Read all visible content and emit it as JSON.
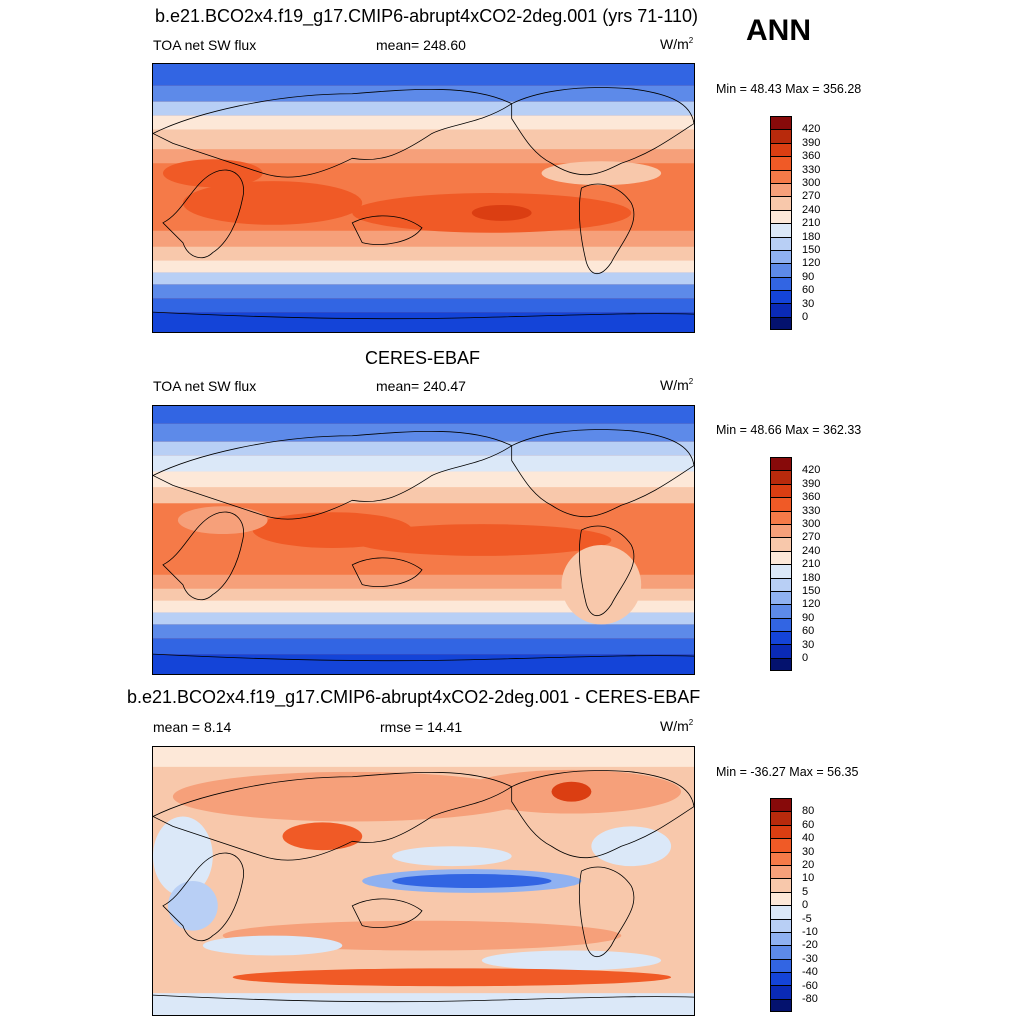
{
  "season": "ANN",
  "units_base": "W/m",
  "units_exp": "2",
  "panels": [
    {
      "title": "b.e21.BCO2x4.f19_g17.CMIP6-abrupt4xCO2-2deg.001 (yrs 71-110)",
      "left_label": "TOA net SW flux",
      "center_label": "mean= 248.60",
      "minmax": "Min =  48.43 Max = 356.28",
      "colorbar_labels": [
        "420",
        "390",
        "360",
        "330",
        "300",
        "270",
        "240",
        "210",
        "180",
        "150",
        "120",
        "90",
        "60",
        "30",
        "0"
      ],
      "colorbar_colors": [
        "#870a0a",
        "#b82a0c",
        "#db3e12",
        "#f05a26",
        "#f57a48",
        "#f6a07a",
        "#f8c8ab",
        "#fde8d8",
        "#dbe8f8",
        "#b8cff5",
        "#8fb1f1",
        "#5d8ae9",
        "#3265e3",
        "#1444d8",
        "#0a2ab6",
        "#04126e"
      ]
    },
    {
      "title": "CERES-EBAF",
      "left_label": "TOA net SW flux",
      "center_label": "mean= 240.47",
      "minmax": "Min =  48.66 Max = 362.33",
      "colorbar_labels": [
        "420",
        "390",
        "360",
        "330",
        "300",
        "270",
        "240",
        "210",
        "180",
        "150",
        "120",
        "90",
        "60",
        "30",
        "0"
      ],
      "colorbar_colors": [
        "#870a0a",
        "#b82a0c",
        "#db3e12",
        "#f05a26",
        "#f57a48",
        "#f6a07a",
        "#f8c8ab",
        "#fde8d8",
        "#dbe8f8",
        "#b8cff5",
        "#8fb1f1",
        "#5d8ae9",
        "#3265e3",
        "#1444d8",
        "#0a2ab6",
        "#04126e"
      ]
    },
    {
      "title": "b.e21.BCO2x4.f19_g17.CMIP6-abrupt4xCO2-2deg.001 - CERES-EBAF",
      "left_label": "mean =   8.14",
      "center_label": "rmse =  14.41",
      "minmax": "Min = -36.27 Max =  56.35",
      "colorbar_labels": [
        "80",
        "60",
        "40",
        "30",
        "20",
        "10",
        "5",
        "0",
        "-5",
        "-10",
        "-20",
        "-30",
        "-40",
        "-60",
        "-80"
      ],
      "colorbar_colors": [
        "#870a0a",
        "#b82a0c",
        "#db3e12",
        "#f05a26",
        "#f57a48",
        "#f6a07a",
        "#f8c8ab",
        "#fde8d8",
        "#dbe8f8",
        "#b8cff5",
        "#8fb1f1",
        "#5d8ae9",
        "#3265e3",
        "#1444d8",
        "#0a2ab6",
        "#04126e"
      ]
    }
  ]
}
